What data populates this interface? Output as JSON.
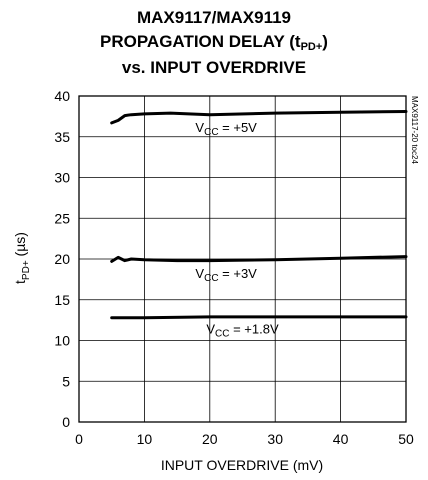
{
  "chart_data": {
    "type": "line",
    "title_lines": [
      "MAX9117/MAX9119",
      "PROPAGATION DELAY (t",
      "PD+",
      ")",
      "vs. INPUT OVERDRIVE"
    ],
    "xlabel": "INPUT OVERDRIVE (mV)",
    "ylabel_main": "t",
    "ylabel_sub": "PD+",
    "ylabel_unit": " (µs)",
    "xlim": [
      0,
      50
    ],
    "ylim": [
      0,
      40
    ],
    "xticks": [
      0,
      10,
      20,
      30,
      40,
      50
    ],
    "yticks": [
      0,
      5,
      10,
      15,
      20,
      25,
      30,
      35,
      40
    ],
    "grid": true,
    "side_label": "MAX9117-20 toc24",
    "series": [
      {
        "name_main": "V",
        "name_sub": "CC",
        "name_rest": " = +5V",
        "x": [
          5,
          6,
          7,
          8,
          10,
          14,
          20,
          30,
          40,
          50
        ],
        "y": [
          36.7,
          37.0,
          37.6,
          37.7,
          37.8,
          37.9,
          37.7,
          37.9,
          38.0,
          38.1
        ]
      },
      {
        "name_main": "V",
        "name_sub": "CC",
        "name_rest": " = +3V",
        "x": [
          5,
          6,
          7,
          8,
          10,
          15,
          20,
          30,
          40,
          50
        ],
        "y": [
          19.7,
          20.2,
          19.8,
          20.0,
          19.9,
          19.8,
          19.8,
          19.9,
          20.1,
          20.3
        ]
      },
      {
        "name_main": "V",
        "name_sub": "CC",
        "name_rest": " = +1.8V",
        "x": [
          5,
          10,
          20,
          30,
          40,
          50
        ],
        "y": [
          12.8,
          12.8,
          12.9,
          12.9,
          12.9,
          12.9
        ]
      }
    ]
  }
}
